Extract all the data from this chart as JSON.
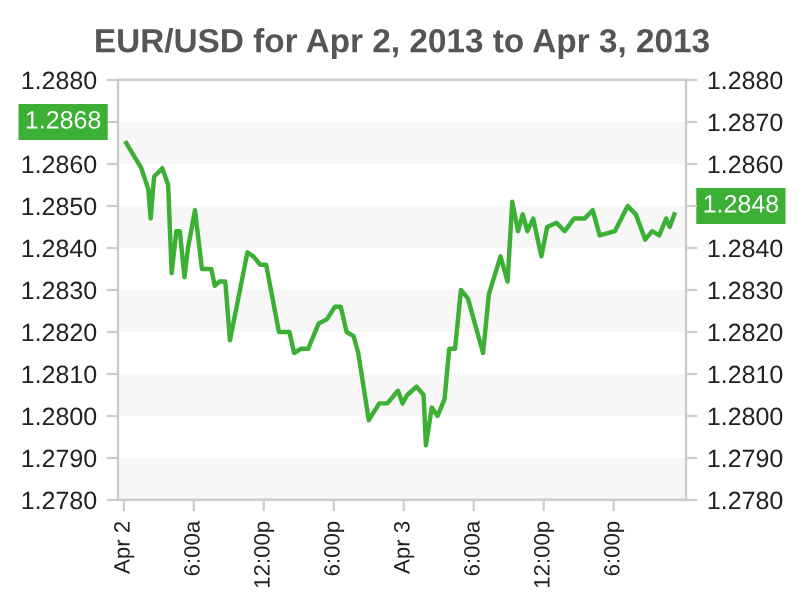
{
  "chart_data": {
    "type": "line",
    "title": "EUR/USD for Apr 2, 2013 to Apr 3, 2013",
    "x": [
      "2013-04-02T00:12",
      "2013-04-02T01:30",
      "2013-04-02T02:06",
      "2013-04-02T02:18",
      "2013-04-02T02:36",
      "2013-04-02T03:18",
      "2013-04-02T03:48",
      "2013-04-02T04:06",
      "2013-04-02T04:30",
      "2013-04-02T04:48",
      "2013-04-02T05:12",
      "2013-04-02T05:30",
      "2013-04-02T06:06",
      "2013-04-02T06:42",
      "2013-04-02T07:30",
      "2013-04-02T07:48",
      "2013-04-02T08:12",
      "2013-04-02T08:42",
      "2013-04-02T09:06",
      "2013-04-02T10:36",
      "2013-04-02T11:06",
      "2013-04-02T11:42",
      "2013-04-02T12:12",
      "2013-04-02T13:18",
      "2013-04-02T13:48",
      "2013-04-02T14:12",
      "2013-04-02T14:36",
      "2013-04-02T15:12",
      "2013-04-02T15:48",
      "2013-04-02T16:42",
      "2013-04-02T17:24",
      "2013-04-02T18:06",
      "2013-04-02T18:36",
      "2013-04-02T19:06",
      "2013-04-02T19:42",
      "2013-04-02T20:06",
      "2013-04-02T21:00",
      "2013-04-02T21:54",
      "2013-04-02T22:36",
      "2013-04-02T23:30",
      "2013-04-02T23:54",
      "2013-04-03T00:18",
      "2013-04-03T01:06",
      "2013-04-03T01:42",
      "2013-04-03T01:54",
      "2013-04-03T02:24",
      "2013-04-03T02:54",
      "2013-04-03T03:30",
      "2013-04-03T03:54",
      "2013-04-03T04:24",
      "2013-04-03T04:54",
      "2013-04-03T05:30",
      "2013-04-03T06:06",
      "2013-04-03T06:48",
      "2013-04-03T07:18",
      "2013-04-03T08:18",
      "2013-04-03T08:54",
      "2013-04-03T09:18",
      "2013-04-03T09:48",
      "2013-04-03T10:12",
      "2013-04-03T10:36",
      "2013-04-03T11:06",
      "2013-04-03T11:48",
      "2013-04-03T12:18",
      "2013-04-03T13:06",
      "2013-04-03T13:48",
      "2013-04-03T14:36",
      "2013-04-03T15:30",
      "2013-04-03T16:12",
      "2013-04-03T16:48",
      "2013-04-03T18:06",
      "2013-04-03T19:12",
      "2013-04-03T19:54",
      "2013-04-03T20:42",
      "2013-04-03T21:18",
      "2013-04-03T21:54",
      "2013-04-03T22:30",
      "2013-04-03T22:48",
      "2013-04-03T23:12"
    ],
    "series": [
      {
        "color": "#3cb034",
        "values": [
          1.2865,
          1.2859,
          1.2854,
          1.2847,
          1.2857,
          1.2859,
          1.2855,
          1.2834,
          1.2844,
          1.2844,
          1.2833,
          1.284,
          1.2849,
          1.2835,
          1.2835,
          1.2831,
          1.2832,
          1.2832,
          1.2818,
          1.2839,
          1.2838,
          1.2836,
          1.2836,
          1.282,
          1.282,
          1.282,
          1.2815,
          1.2816,
          1.2816,
          1.2822,
          1.2823,
          1.2826,
          1.2826,
          1.282,
          1.2819,
          1.2815,
          1.2799,
          1.2803,
          1.2803,
          1.2806,
          1.2803,
          1.2805,
          1.2807,
          1.2805,
          1.2793,
          1.2802,
          1.28,
          1.2804,
          1.2816,
          1.2816,
          1.283,
          1.2828,
          1.2822,
          1.2815,
          1.2829,
          1.2838,
          1.2832,
          1.2851,
          1.2844,
          1.2848,
          1.2844,
          1.2847,
          1.2838,
          1.2845,
          1.2846,
          1.2844,
          1.2847,
          1.2847,
          1.2849,
          1.2843,
          1.2844,
          1.285,
          1.2848,
          1.2842,
          1.2844,
          1.2843,
          1.2847,
          1.2845,
          1.2848
        ]
      }
    ],
    "xlim": [
      "2013-04-01T23:30",
      "2013-04-04T00:12"
    ],
    "xticks": [
      {
        "value": "2013-04-02T00:00",
        "label": "Apr 2"
      },
      {
        "value": "2013-04-02T06:00",
        "label": "6:00a"
      },
      {
        "value": "2013-04-02T12:00",
        "label": "12:00p"
      },
      {
        "value": "2013-04-02T18:00",
        "label": "6:00p"
      },
      {
        "value": "2013-04-03T00:00",
        "label": "Apr 3"
      },
      {
        "value": "2013-04-03T06:00",
        "label": "6:00a"
      },
      {
        "value": "2013-04-03T12:00",
        "label": "12:00p"
      },
      {
        "value": "2013-04-03T18:00",
        "label": "6:00p"
      }
    ],
    "ylim": [
      1.278,
      1.288
    ],
    "yticks": [
      {
        "value": 1.278,
        "label": "1.2780"
      },
      {
        "value": 1.279,
        "label": "1.2790"
      },
      {
        "value": 1.28,
        "label": "1.2800"
      },
      {
        "value": 1.281,
        "label": "1.2810"
      },
      {
        "value": 1.282,
        "label": "1.2820"
      },
      {
        "value": 1.283,
        "label": "1.2830"
      },
      {
        "value": 1.284,
        "label": "1.2840"
      },
      {
        "value": 1.285,
        "label": "1.2850"
      },
      {
        "value": 1.286,
        "label": "1.2860"
      },
      {
        "value": 1.287,
        "label": null
      },
      {
        "value": 1.288,
        "label": "1.2880"
      }
    ],
    "y2lim": [
      1.278,
      1.288
    ],
    "y2ticks": [
      {
        "value": 1.278,
        "label": "1.2780"
      },
      {
        "value": 1.279,
        "label": "1.2790"
      },
      {
        "value": 1.28,
        "label": "1.2800"
      },
      {
        "value": 1.281,
        "label": "1.2810"
      },
      {
        "value": 1.282,
        "label": "1.2820"
      },
      {
        "value": 1.283,
        "label": "1.2830"
      },
      {
        "value": 1.284,
        "label": "1.2840"
      },
      {
        "value": 1.285,
        "label": null
      },
      {
        "value": 1.286,
        "label": "1.2860"
      },
      {
        "value": 1.287,
        "label": "1.2870"
      },
      {
        "value": 1.288,
        "label": "1.2880"
      }
    ],
    "bands": [
      {
        "axis": "y",
        "from": 1.278,
        "to": 1.279,
        "color": "#f7f7f7"
      },
      {
        "axis": "y",
        "from": 1.28,
        "to": 1.281,
        "color": "#f7f7f7"
      },
      {
        "axis": "y",
        "from": 1.282,
        "to": 1.283,
        "color": "#f7f7f7"
      },
      {
        "axis": "y",
        "from": 1.284,
        "to": 1.285,
        "color": "#f7f7f7"
      },
      {
        "axis": "y",
        "from": 1.286,
        "to": 1.287,
        "color": "#f7f7f7"
      }
    ],
    "annotations": [
      "1.2868",
      "1.2848"
    ],
    "legend": false,
    "marker": "none",
    "line_style": "solid"
  }
}
